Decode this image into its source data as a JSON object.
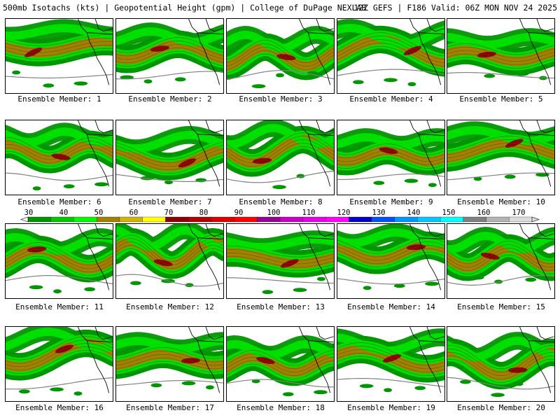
{
  "header": {
    "left_text": "500mb Isotachs (kts) | Geopotential Height (gpm) | College of DuPage NEXLAB",
    "right_text": "12Z GEFS | F186 Valid: 06Z MON NOV 24 2025"
  },
  "members": [
    {
      "label": "Ensemble Member: 1"
    },
    {
      "label": "Ensemble Member: 2"
    },
    {
      "label": "Ensemble Member: 3"
    },
    {
      "label": "Ensemble Member: 4"
    },
    {
      "label": "Ensemble Member: 5"
    },
    {
      "label": "Ensemble Member: 6"
    },
    {
      "label": "Ensemble Member: 7"
    },
    {
      "label": "Ensemble Member: 8"
    },
    {
      "label": "Ensemble Member: 9"
    },
    {
      "label": "Ensemble Member: 10"
    },
    {
      "label": "Ensemble Member: 11"
    },
    {
      "label": "Ensemble Member: 12"
    },
    {
      "label": "Ensemble Member: 13"
    },
    {
      "label": "Ensemble Member: 14"
    },
    {
      "label": "Ensemble Member: 15"
    },
    {
      "label": "Ensemble Member: 16"
    },
    {
      "label": "Ensemble Member: 17"
    },
    {
      "label": "Ensemble Member: 18"
    },
    {
      "label": "Ensemble Member: 19"
    },
    {
      "label": "Ensemble Member: 20"
    }
  ],
  "colorbar": {
    "ticks": [
      "30",
      "40",
      "50",
      "60",
      "70",
      "80",
      "90",
      "100",
      "110",
      "120",
      "130",
      "140",
      "150",
      "160",
      "170"
    ],
    "colors": [
      "#009600",
      "#00c800",
      "#00fa00",
      "#a08200",
      "#d2b400",
      "#ffff00",
      "#8c0000",
      "#b40000",
      "#dc0000",
      "#ff0000",
      "#960096",
      "#c800c8",
      "#e600e6",
      "#ff00ff",
      "#0000c8",
      "#0050ff",
      "#0096ff",
      "#00c8ff",
      "#00ffff",
      "#808080",
      "#b4b4b4",
      "#dcdcdc"
    ]
  },
  "legend": {
    "jet_outer": "#009600",
    "jet_mid": "#00e000",
    "jet_core": "#a08200",
    "jet_max": "#8c0000",
    "height_contour": "#808080",
    "coast": "#000000"
  }
}
